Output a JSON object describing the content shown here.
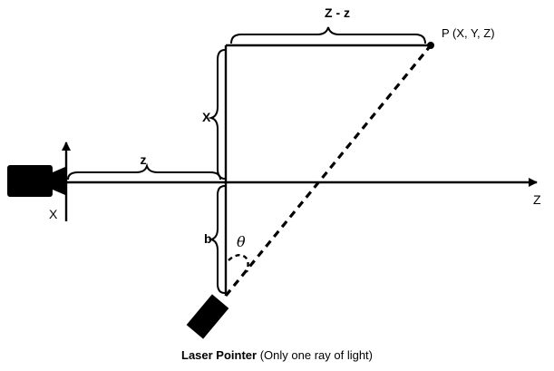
{
  "labels": {
    "z_minus_z": "Z - z",
    "point": "P (X, Y, Z)",
    "x_segment": "X",
    "z_segment": "z",
    "b_segment": "b",
    "theta": "θ",
    "z_axis": "Z",
    "x_axis": "X"
  },
  "caption": {
    "title": "Laser Pointer",
    "note": "(Only one ray of light)"
  },
  "colors": {
    "ink": "#000000",
    "background": "#ffffff"
  },
  "icons": {
    "camera": "camera-icon",
    "laser": "laser-pointer-icon"
  }
}
